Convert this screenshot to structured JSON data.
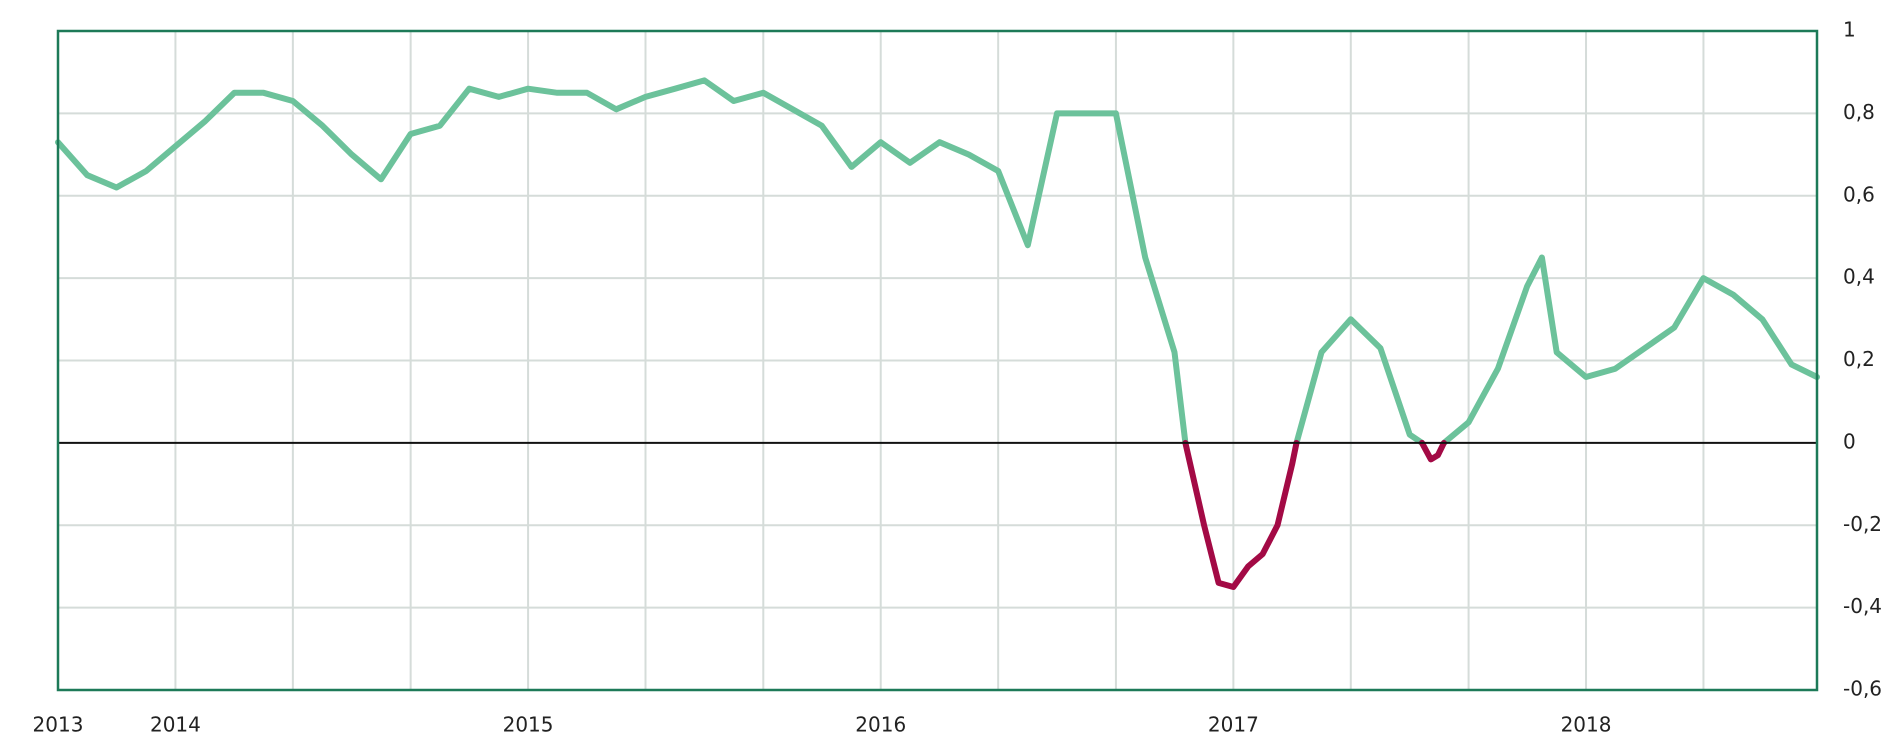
{
  "chart_data": {
    "type": "line",
    "x": [
      2013.667,
      2013.75,
      2013.833,
      2013.917,
      2014,
      2014.083,
      2014.167,
      2014.25,
      2014.333,
      2014.417,
      2014.5,
      2014.583,
      2014.667,
      2014.75,
      2014.833,
      2014.917,
      2015,
      2015.083,
      2015.167,
      2015.25,
      2015.333,
      2015.417,
      2015.5,
      2015.583,
      2015.667,
      2015.75,
      2015.833,
      2015.917,
      2016,
      2016.083,
      2016.167,
      2016.25,
      2016.333,
      2016.417,
      2016.5,
      2016.583,
      2016.667,
      2016.75,
      2016.833,
      2016.864,
      2016.917,
      2016.958,
      2017,
      2017.042,
      2017.083,
      2017.125,
      2017.167,
      2017.179,
      2017.25,
      2017.333,
      2017.417,
      2017.5,
      2017.535,
      2017.56,
      2017.58,
      2017.597,
      2017.667,
      2017.75,
      2017.833,
      2017.875,
      2017.917,
      2018,
      2018.083,
      2018.167,
      2018.25,
      2018.333,
      2018.417,
      2018.5,
      2018.583,
      2018.655
    ],
    "series": [
      {
        "color": "#6cc29b",
        "values": [
          0.73,
          0.65,
          0.62,
          0.66,
          0.72,
          0.78,
          0.85,
          0.85,
          0.83,
          0.77,
          0.7,
          0.64,
          0.75,
          0.77,
          0.86,
          0.84,
          0.86,
          0.85,
          0.85,
          0.81,
          0.84,
          0.86,
          0.88,
          0.83,
          0.85,
          0.81,
          0.77,
          0.67,
          0.73,
          0.68,
          0.73,
          0.7,
          0.66,
          0.48,
          0.8,
          0.8,
          0.8,
          0.45,
          0.22,
          0,
          null,
          null,
          null,
          null,
          null,
          null,
          null,
          0,
          0.22,
          0.3,
          0.23,
          0.02,
          0,
          null,
          null,
          0,
          0.05,
          0.18,
          0.38,
          0.45,
          0.22,
          0.16,
          0.18,
          0.23,
          0.28,
          0.4,
          0.36,
          0.3,
          0.19,
          0.16
        ]
      },
      {
        "color": "#a30a45",
        "values": [
          null,
          null,
          null,
          null,
          null,
          null,
          null,
          null,
          null,
          null,
          null,
          null,
          null,
          null,
          null,
          null,
          null,
          null,
          null,
          null,
          null,
          null,
          null,
          null,
          null,
          null,
          null,
          null,
          null,
          null,
          null,
          null,
          null,
          null,
          null,
          null,
          null,
          null,
          null,
          0,
          -0.2,
          -0.34,
          -0.35,
          -0.3,
          -0.27,
          -0.2,
          -0.05,
          0,
          null,
          null,
          null,
          null,
          0,
          -0.04,
          -0.03,
          0,
          null,
          null,
          null,
          null,
          null,
          null,
          null,
          null,
          null,
          null,
          null,
          null,
          null,
          null
        ]
      }
    ],
    "xlim": [
      2013.667,
      2018.655
    ],
    "xticks": [
      {
        "value": 2013.667,
        "label": "2013"
      },
      2014,
      2015,
      2016,
      2017,
      2018
    ],
    "xgrid": [
      2014,
      2014.333,
      2014.667,
      2015,
      2015.333,
      2015.667,
      2016,
      2016.333,
      2016.667,
      2017,
      2017.333,
      2017.667,
      2018,
      2018.333
    ],
    "ylim": [
      -0.6,
      1
    ],
    "yticks": [
      {
        "value": -0.6,
        "label": "-0,6"
      },
      {
        "value": -0.4,
        "label": "-0,4"
      },
      {
        "value": -0.2,
        "label": "-0,2"
      },
      0,
      {
        "value": 0.2,
        "label": "0,2"
      },
      {
        "value": 0.4,
        "label": "0,4"
      },
      {
        "value": 0.6,
        "label": "0,6"
      },
      {
        "value": 0.8,
        "label": "0,8"
      },
      1
    ],
    "grid": true
  }
}
